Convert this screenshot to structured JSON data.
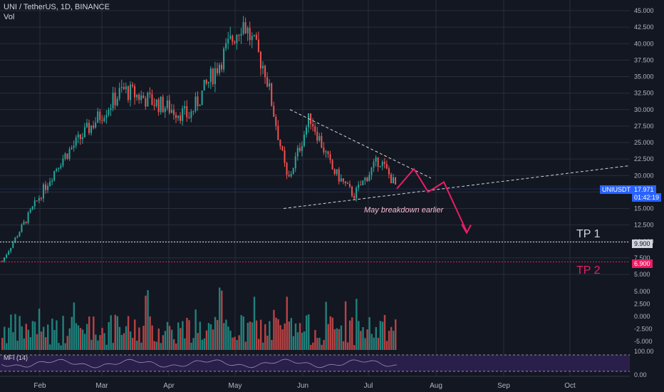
{
  "header": {
    "symbol_line": "UNI / TetherUS, 1D, BINANCE",
    "vol_label": "Vol"
  },
  "mfi_label": "MFI (14)",
  "chart_data": {
    "type": "candlestick",
    "ylim": [
      5.0,
      45.0
    ],
    "price_ticks": [
      "45.000",
      "42.500",
      "40.000",
      "37.500",
      "35.000",
      "32.500",
      "30.000",
      "27.500",
      "25.000",
      "22.500",
      "20.000",
      "17.500",
      "15.000",
      "12.500",
      "10.000",
      "7.500",
      "5.000"
    ],
    "volume_ticks": [
      "5.000",
      "2.500",
      "0.000",
      "-2.500",
      "-5.000"
    ],
    "mfi_ticks": [
      "100.00",
      "0.00"
    ],
    "x_labels": [
      "Feb",
      "Mar",
      "Apr",
      "May",
      "Jun",
      "Jul",
      "Aug",
      "Sep",
      "Oct"
    ],
    "close_path": [
      [
        "Jan",
        7.0
      ],
      [
        "Feb",
        22.0
      ],
      [
        "Mar",
        33.0
      ],
      [
        "Apr",
        29.0
      ],
      [
        "May",
        43.5
      ],
      [
        "May",
        36.0
      ],
      [
        "May",
        19.0
      ],
      [
        "Jun",
        29.0
      ],
      [
        "Jun",
        21.0
      ],
      [
        "Jun",
        17.0
      ],
      [
        "Jul",
        22.5
      ],
      [
        "Jul",
        17.97
      ]
    ],
    "current_price": {
      "symbol": "UNIUSDT",
      "value": "17.971",
      "countdown": "01:42:19",
      "color": "#2962ff"
    },
    "levels": [
      {
        "name": "TP 1",
        "value": 9.9,
        "label": "9.900",
        "color": "#d1d4dc"
      },
      {
        "name": "TP 2",
        "value": 6.9,
        "label": "6.900",
        "color": "#e91e63"
      }
    ],
    "annotation": "May breakdown earlier",
    "colors": {
      "up": "#26a69a",
      "down": "#ef5350",
      "projection": "#e91e63"
    }
  }
}
